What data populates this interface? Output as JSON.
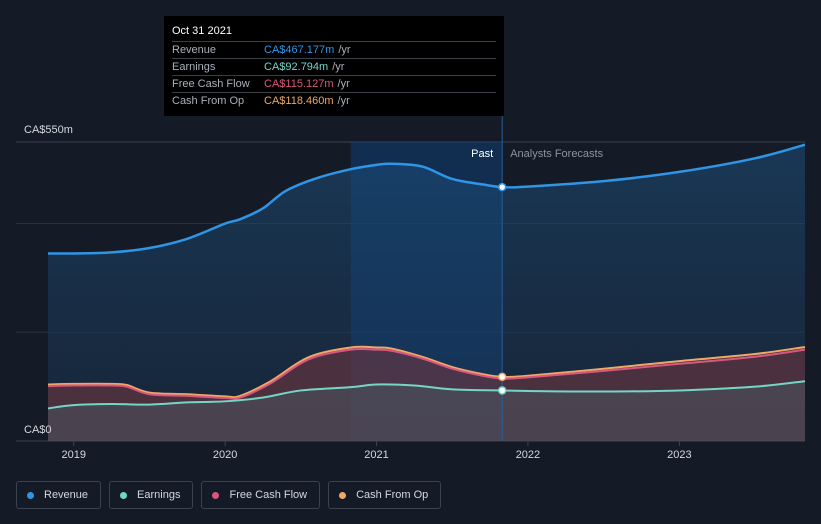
{
  "colors": {
    "revenue": "#2f95e6",
    "earnings": "#74d6c6",
    "free_cash_flow": "#d9577f",
    "cash_from_op": "#f0a866",
    "background": "#151b26"
  },
  "tooltip": {
    "date": "Oct 31 2021",
    "rows": [
      {
        "label": "Revenue",
        "value": "CA$467.177m",
        "unit": "/yr",
        "color": "#2f95e6"
      },
      {
        "label": "Earnings",
        "value": "CA$92.794m",
        "unit": "/yr",
        "color": "#74d6c6"
      },
      {
        "label": "Free Cash Flow",
        "value": "CA$115.127m",
        "unit": "/yr",
        "color": "#d9577f"
      },
      {
        "label": "Cash From Op",
        "value": "CA$118.460m",
        "unit": "/yr",
        "color": "#f0a866"
      }
    ]
  },
  "legend": [
    {
      "label": "Revenue",
      "icon": "revenue-dot-icon",
      "color": "#2f95e6"
    },
    {
      "label": "Earnings",
      "icon": "earnings-dot-icon",
      "color": "#74d6c6"
    },
    {
      "label": "Free Cash Flow",
      "icon": "free-cash-flow-dot-icon",
      "color": "#d9577f"
    },
    {
      "label": "Cash From Op",
      "icon": "cash-from-op-dot-icon",
      "color": "#f0a866"
    }
  ],
  "chart_data": {
    "type": "area",
    "title": "",
    "y_top_label": "CA$550m",
    "y_bottom_label": "CA$0",
    "ylim": [
      0,
      550
    ],
    "xlim": [
      2018.83,
      2023.83
    ],
    "x_ticks": [
      2019,
      2020,
      2021,
      2022,
      2023
    ],
    "x_tick_labels": [
      "2019",
      "2020",
      "2021",
      "2022",
      "2023"
    ],
    "past_label": "Past",
    "forecast_label": "Analysts Forecasts",
    "divider_x": 2021.83,
    "highlight_range": [
      2020.83,
      2021.83
    ],
    "series": [
      {
        "name": "Revenue",
        "key": "revenue",
        "x": [
          2018.83,
          2019.0,
          2019.25,
          2019.5,
          2019.75,
          2020.0,
          2020.1,
          2020.25,
          2020.4,
          2020.6,
          2020.83,
          2021.0,
          2021.1,
          2021.3,
          2021.5,
          2021.7,
          2021.83,
          2022.0,
          2022.5,
          2023.0,
          2023.5,
          2023.83
        ],
        "values": [
          345,
          345,
          347,
          355,
          372,
          400,
          408,
          428,
          460,
          483,
          500,
          508,
          510,
          505,
          482,
          472,
          467,
          468,
          478,
          495,
          520,
          545
        ]
      },
      {
        "name": "Earnings",
        "key": "earnings",
        "x": [
          2018.83,
          2019.0,
          2019.25,
          2019.5,
          2019.75,
          2020.0,
          2020.25,
          2020.5,
          2020.83,
          2021.0,
          2021.25,
          2021.5,
          2021.83,
          2022.0,
          2022.5,
          2023.0,
          2023.5,
          2023.83
        ],
        "values": [
          60,
          66,
          68,
          67,
          71,
          73,
          80,
          93,
          99,
          104,
          102,
          95,
          93,
          92,
          91,
          93,
          100,
          110
        ]
      },
      {
        "name": "Free Cash Flow",
        "key": "free_cash_flow",
        "x": [
          2018.83,
          2019.0,
          2019.25,
          2019.35,
          2019.5,
          2019.75,
          2020.0,
          2020.1,
          2020.3,
          2020.55,
          2020.83,
          2021.0,
          2021.1,
          2021.3,
          2021.5,
          2021.7,
          2021.83,
          2022.0,
          2022.5,
          2023.0,
          2023.5,
          2023.83
        ],
        "values": [
          101,
          102,
          102,
          100,
          86,
          83,
          79,
          80,
          106,
          150,
          168,
          168,
          166,
          152,
          133,
          120,
          115,
          117,
          129,
          142,
          155,
          168
        ]
      },
      {
        "name": "Cash From Op",
        "key": "cash_from_op",
        "x": [
          2018.83,
          2019.0,
          2019.25,
          2019.35,
          2019.5,
          2019.75,
          2020.0,
          2020.1,
          2020.3,
          2020.55,
          2020.83,
          2021.0,
          2021.1,
          2021.3,
          2021.5,
          2021.7,
          2021.83,
          2022.0,
          2022.5,
          2023.0,
          2023.5,
          2023.83
        ],
        "values": [
          104,
          105,
          105,
          103,
          89,
          86,
          82,
          83,
          110,
          154,
          172,
          172,
          170,
          155,
          136,
          123,
          118,
          120,
          133,
          147,
          160,
          173
        ]
      }
    ]
  }
}
